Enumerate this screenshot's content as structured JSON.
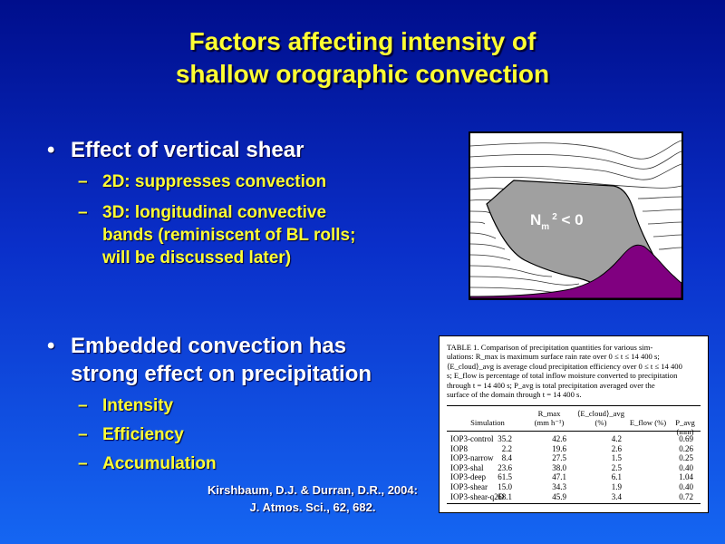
{
  "title": {
    "line1": "Factors affecting intensity of",
    "line2": "shallow orographic convection"
  },
  "bullets": [
    {
      "text": "Effect of vertical shear",
      "subs": [
        {
          "lines": [
            "2D: suppresses convection"
          ]
        },
        {
          "lines": [
            "3D: longitudinal convective",
            "bands (reminiscent of  BL rolls;",
            "will be discussed later)"
          ]
        }
      ]
    },
    {
      "lines": [
        "Embedded convection has",
        "strong effect on precipitation"
      ],
      "subs": [
        {
          "lines": [
            "Intensity"
          ]
        },
        {
          "lines": [
            "Efficiency"
          ]
        },
        {
          "lines": [
            "Accumulation"
          ]
        }
      ]
    }
  ],
  "citation": {
    "line1": "Kirshbaum, D.J. & Durran, D.R., 2004:",
    "line2": "J. Atmos. Sci., 62, 682."
  },
  "figure": {
    "label_base": "N",
    "label_sub": "m",
    "label_sup": "2",
    "label_rest": " < 0",
    "colors": {
      "gray_region": "#a0a0a0",
      "purple_terrain": "#800080",
      "lines": "#333333"
    }
  },
  "table": {
    "caption_lines": [
      "TABLE 1. Comparison of precipitation quantities for various sim-",
      "ulations: R_max is maximum surface rain rate over 0 ≤ t ≤ 14 400 s;",
      "⟨E_cloud⟩_avg is average cloud precipitation efficiency over 0 ≤ t ≤ 14 400",
      "s; E_flow is percentage of total inflow moisture converted to precipitation",
      "through t = 14 400 s; P_avg is total precipitation averaged over the",
      "surface of the domain through t = 14 400 s."
    ],
    "headers": {
      "simulation": "Simulation",
      "rmax": "R_max",
      "rmax_unit": "(mm h⁻¹)",
      "ecloud": "⟨E_cloud⟩_avg",
      "ecloud_unit": "(%)",
      "eflow": "E_flow (%)",
      "pavg": "P_avg (mm)"
    },
    "rows": [
      [
        "IOP3-control",
        "35.2",
        "42.6",
        "4.2",
        "0.69"
      ],
      [
        "IOP8",
        "2.2",
        "19.6",
        "2.6",
        "0.26"
      ],
      [
        "IOP3-narrow",
        "8.4",
        "27.5",
        "1.5",
        "0.25"
      ],
      [
        "IOP3-shal",
        "23.6",
        "38.0",
        "2.5",
        "0.40"
      ],
      [
        "IOP3-deep",
        "61.5",
        "47.1",
        "6.1",
        "1.04"
      ],
      [
        "IOP3-shear",
        "15.0",
        "34.3",
        "1.9",
        "0.40"
      ],
      [
        "IOP3-shear-q2D",
        "68.1",
        "45.9",
        "3.4",
        "0.72"
      ]
    ]
  }
}
